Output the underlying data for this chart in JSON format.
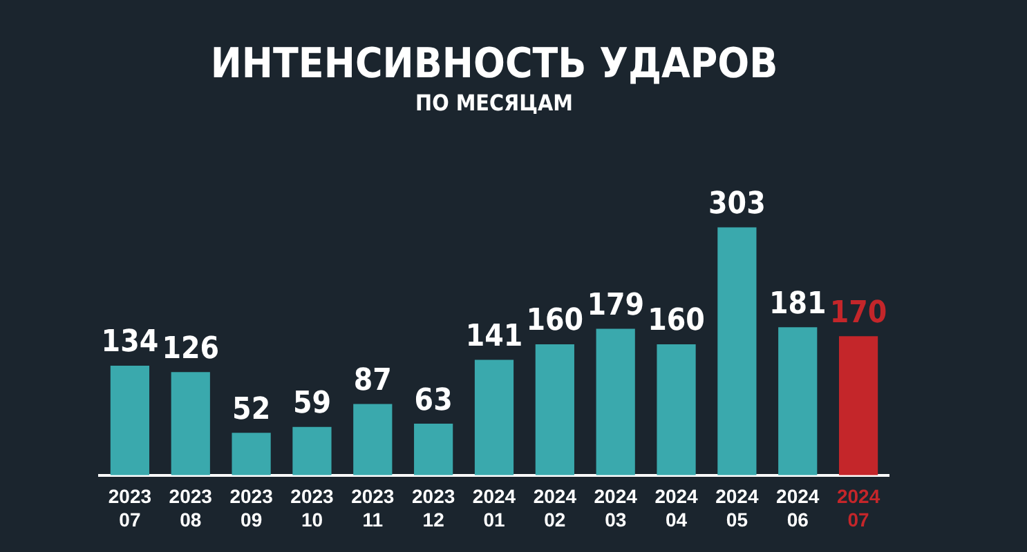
{
  "chart_data": {
    "type": "bar",
    "title": "ИНТЕНСИВНОСТЬ УДАРОВ",
    "subtitle": "ПО МЕСЯЦАМ",
    "categories": [
      "2023 07",
      "2023 08",
      "2023 09",
      "2023 10",
      "2023 11",
      "2023 12",
      "2024 01",
      "2024 02",
      "2024 03",
      "2024 04",
      "2024 05",
      "2024 06",
      "2024 07"
    ],
    "values": [
      134,
      126,
      52,
      59,
      87,
      63,
      141,
      160,
      179,
      160,
      303,
      181,
      170
    ],
    "colors": [
      "#3aa9ad",
      "#3aa9ad",
      "#3aa9ad",
      "#3aa9ad",
      "#3aa9ad",
      "#3aa9ad",
      "#3aa9ad",
      "#3aa9ad",
      "#3aa9ad",
      "#3aa9ad",
      "#3aa9ad",
      "#3aa9ad",
      "#c4262a"
    ],
    "data_labels": true
  }
}
